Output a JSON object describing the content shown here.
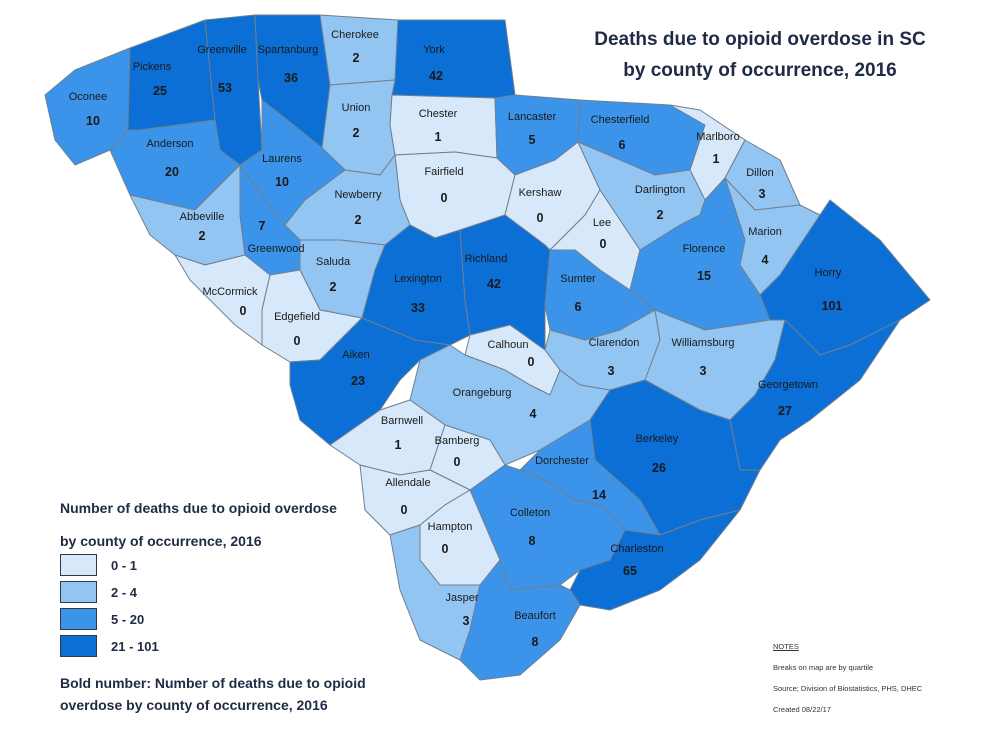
{
  "title_line1": "Deaths due to opioid overdose in SC",
  "title_line2": "by county of occurrence, 2016",
  "colors": {
    "q1": "#d6e8fa",
    "q2": "#93c5f2",
    "q3": "#3b94ea",
    "q4": "#0b6fd6",
    "border": "#6f7f8f"
  },
  "counties": [
    {
      "name": "Oconee",
      "value": "10",
      "class": "q3"
    },
    {
      "name": "Pickens",
      "value": "25",
      "class": "q4"
    },
    {
      "name": "Greenville",
      "value": "53",
      "class": "q4"
    },
    {
      "name": "Spartanburg",
      "value": "36",
      "class": "q4"
    },
    {
      "name": "Cherokee",
      "value": "2",
      "class": "q2"
    },
    {
      "name": "York",
      "value": "42",
      "class": "q4"
    },
    {
      "name": "Anderson",
      "value": "20",
      "class": "q3"
    },
    {
      "name": "Union",
      "value": "2",
      "class": "q2"
    },
    {
      "name": "Chester",
      "value": "1",
      "class": "q1"
    },
    {
      "name": "Lancaster",
      "value": "5",
      "class": "q3"
    },
    {
      "name": "Chesterfield",
      "value": "6",
      "class": "q3"
    },
    {
      "name": "Marlboro",
      "value": "1",
      "class": "q1"
    },
    {
      "name": "Laurens",
      "value": "10",
      "class": "q3"
    },
    {
      "name": "Fairfield",
      "value": "0",
      "class": "q1"
    },
    {
      "name": "Kershaw",
      "value": "0",
      "class": "q1"
    },
    {
      "name": "Darlington",
      "value": "2",
      "class": "q2"
    },
    {
      "name": "Dillon",
      "value": "3",
      "class": "q2"
    },
    {
      "name": "Abbeville",
      "value": "2",
      "class": "q2"
    },
    {
      "name": "Greenwood",
      "value": "7",
      "class": "q3"
    },
    {
      "name": "Newberry",
      "value": "2",
      "class": "q2"
    },
    {
      "name": "Lee",
      "value": "0",
      "class": "q1"
    },
    {
      "name": "Marion",
      "value": "4",
      "class": "q2"
    },
    {
      "name": "Saluda",
      "value": "2",
      "class": "q2"
    },
    {
      "name": "Lexington",
      "value": "33",
      "class": "q4"
    },
    {
      "name": "Richland",
      "value": "42",
      "class": "q4"
    },
    {
      "name": "Florence",
      "value": "15",
      "class": "q3"
    },
    {
      "name": "Horry",
      "value": "101",
      "class": "q4"
    },
    {
      "name": "Sumter",
      "value": "6",
      "class": "q3"
    },
    {
      "name": "McCormick",
      "value": "0",
      "class": "q1"
    },
    {
      "name": "Edgefield",
      "value": "0",
      "class": "q1"
    },
    {
      "name": "Calhoun",
      "value": "0",
      "class": "q1"
    },
    {
      "name": "Clarendon",
      "value": "3",
      "class": "q2"
    },
    {
      "name": "Williamsburg",
      "value": "3",
      "class": "q2"
    },
    {
      "name": "Aiken",
      "value": "23",
      "class": "q4"
    },
    {
      "name": "Georgetown",
      "value": "27",
      "class": "q4"
    },
    {
      "name": "Orangeburg",
      "value": "4",
      "class": "q2"
    },
    {
      "name": "Barnwell",
      "value": "1",
      "class": "q1"
    },
    {
      "name": "Bamberg",
      "value": "0",
      "class": "q1"
    },
    {
      "name": "Berkeley",
      "value": "26",
      "class": "q4"
    },
    {
      "name": "Dorchester",
      "value": "14",
      "class": "q3"
    },
    {
      "name": "Allendale",
      "value": "0",
      "class": "q1"
    },
    {
      "name": "Colleton",
      "value": "8",
      "class": "q3"
    },
    {
      "name": "Hampton",
      "value": "0",
      "class": "q1"
    },
    {
      "name": "Charleston",
      "value": "65",
      "class": "q4"
    },
    {
      "name": "Jasper",
      "value": "3",
      "class": "q2"
    },
    {
      "name": "Beaufort",
      "value": "8",
      "class": "q3"
    }
  ],
  "legend": {
    "title_line1": "Number of deaths due to opioid overdose",
    "title_line2": "by county of occurrence, 2016",
    "items": [
      {
        "label": "0 - 1",
        "class": "q1"
      },
      {
        "label": "2 - 4",
        "class": "q2"
      },
      {
        "label": "5 - 20",
        "class": "q3"
      },
      {
        "label": "21 - 101",
        "class": "q4"
      }
    ]
  },
  "bold_note_line1": "Bold number: Number of deaths due to opioid",
  "bold_note_line2": "overdose by county of occurrence, 2016",
  "notes": {
    "heading": "NOTES",
    "line1": "Breaks on map are by quartile",
    "line2": "Source; Division of Biostatistics, PHS, DHEC",
    "line3": "Created 08/22/17"
  }
}
